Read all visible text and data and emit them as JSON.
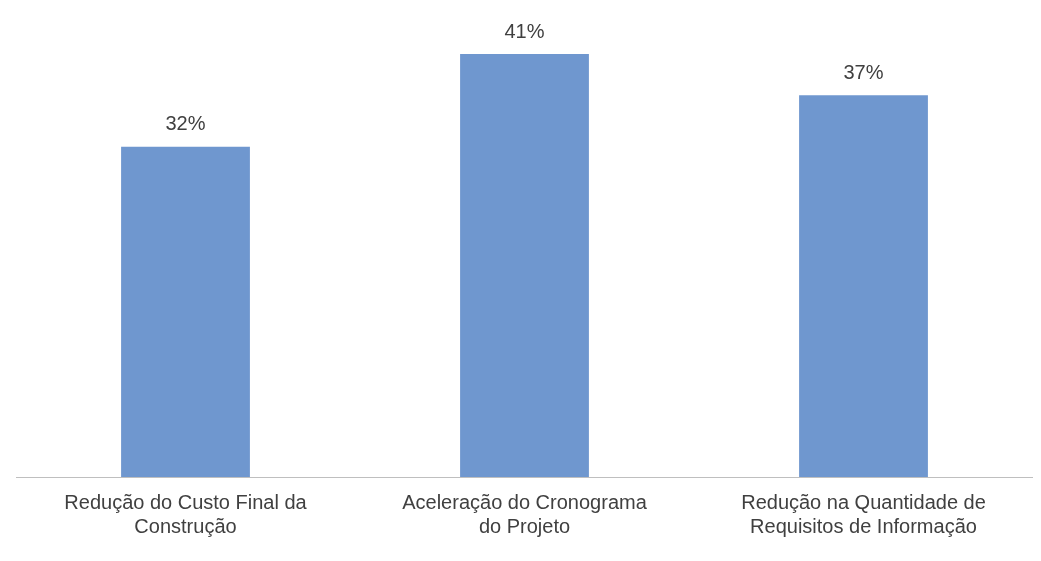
{
  "chart_data": {
    "type": "bar",
    "categories": [
      "Redução do Custo Final da Construção",
      "Aceleração do Cronograma do Projeto",
      "Redução na Quantidade de Requisitos de Informação"
    ],
    "values": [
      32,
      41,
      37
    ],
    "value_labels": [
      "32%",
      "41%",
      "37%"
    ],
    "color": "#6f97cf",
    "relative": false,
    "grid": false,
    "legend": false
  }
}
